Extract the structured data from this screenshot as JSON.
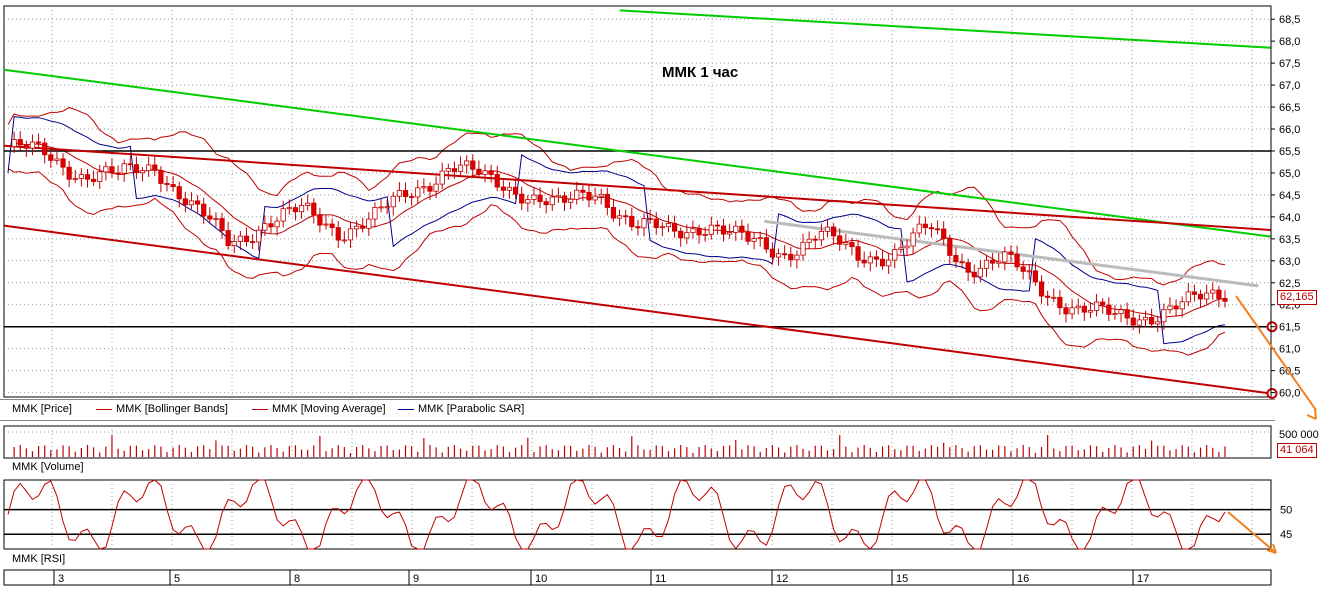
{
  "chart_data": {
    "type": "candlestick",
    "title": "ММК   1 час",
    "instrument": "MMK",
    "price_axis": {
      "ylim": [
        59.9,
        68.8
      ],
      "ticks": [
        "68,5",
        "68,0",
        "67,5",
        "67,0",
        "66,5",
        "66,0",
        "65,5",
        "65,0",
        "64,5",
        "64,0",
        "63,5",
        "63,0",
        "62,5",
        "62,0",
        "61,5",
        "61,0",
        "60,5",
        "60,0"
      ],
      "tick_values": [
        68.5,
        68.0,
        67.5,
        67.0,
        66.5,
        66.0,
        65.5,
        65.0,
        64.5,
        64.0,
        63.5,
        63.0,
        62.5,
        62.0,
        61.5,
        61.0,
        60.5,
        60.0
      ],
      "last_price_label": "62,165",
      "last_price": 62.165
    },
    "date_ticks": [
      "3",
      "5",
      "8",
      "9",
      "10",
      "11",
      "12",
      "15",
      "16",
      "17"
    ],
    "legend": [
      {
        "name": "MMK [Price]",
        "color": "#c00000"
      },
      {
        "name": "MMK [Bollinger Bands]",
        "color": "#c00000"
      },
      {
        "name": "MMK [Moving Average]",
        "color": "#c00000"
      },
      {
        "name": "MMK [Parabolic SAR]",
        "color": "#00008b"
      }
    ],
    "price_trend": [
      65.6,
      65.4,
      65.0,
      64.9,
      65.2,
      64.2,
      63.4,
      63.9,
      64.1,
      63.7,
      64.0,
      64.6,
      65.2,
      64.8,
      64.6,
      64.2,
      64.6,
      63.8,
      63.6,
      63.9,
      63.4,
      63.2,
      63.6,
      63.1,
      63.2,
      63.7,
      62.9,
      63.0,
      62.4,
      61.9,
      61.7,
      61.8,
      62.0,
      62.3
    ],
    "horizontal_levels": [
      {
        "value": 65.5,
        "color": "#000000"
      },
      {
        "value": 61.5,
        "color": "#000000"
      }
    ],
    "trendlines": [
      {
        "color": "#00cc00",
        "from": [
          0.486,
          68.7
        ],
        "to": [
          1.0,
          67.85
        ]
      },
      {
        "color": "#00cc00",
        "from": [
          0.0,
          67.35
        ],
        "to": [
          1.0,
          63.55
        ]
      },
      {
        "color": "#c00000",
        "from": [
          0.0,
          65.62
        ],
        "to": [
          1.0,
          63.7
        ]
      },
      {
        "color": "#c00000",
        "from": [
          0.0,
          63.8
        ],
        "to": [
          1.0,
          59.98
        ]
      },
      {
        "color": "#bbbbbb",
        "from": [
          0.6,
          63.9
        ],
        "to": [
          0.99,
          62.43
        ]
      }
    ],
    "volume": {
      "title": "MMK [Volume]",
      "tick_label": "500 000",
      "last_label": "41 064"
    },
    "rsi": {
      "title": "MMK [RSI]",
      "ticks": [
        "50",
        "45"
      ],
      "tick_values": [
        50,
        45
      ],
      "levels": [
        50,
        45
      ]
    }
  }
}
